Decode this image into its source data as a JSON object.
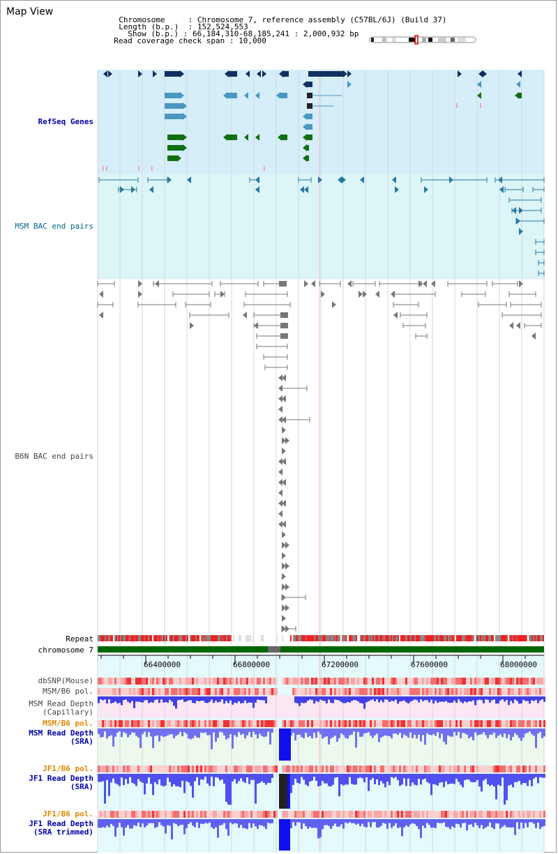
{
  "title": "Map View",
  "header": {
    "chromosome_label": "Chromosome",
    "chromosome_value": "Chromosome 7, reference assembly (C57BL/6J) (Build 37)",
    "length_label": "Length (b.p.)",
    "length_value": "152,524,553",
    "show_label": "Show (b.p.)",
    "show_value": "66,184,310-68,185,241 : 2,000,932 bp",
    "span_label": "Read coverage check span",
    "span_value": "10,000"
  },
  "tracks": {
    "refseq": "RefSeq Genes",
    "msm_bac": "MSM BAC end pairs",
    "b6n_bac": "B6N BAC end pairs",
    "repeat": "Repeat",
    "chromosome": "chromosome 7",
    "dbsnp": "dbSNP(Mouse)",
    "msm_b6_pol_1": "MSM/B6 pol.",
    "msm_read_depth_cap_1": "MSM Read Depth",
    "msm_read_depth_cap_2": "(Capillary)",
    "msm_b6_pol_2": "MSM/B6 pol.",
    "msm_read_depth_sra_1": "MSM Read Depth",
    "msm_read_depth_sra_2": "(SRA)",
    "jf1_b6_pol_1": "JF1/B6 pol.",
    "jf1_read_depth_1": "JF1 Read Depth",
    "jf1_read_depth_2": "(SRA)",
    "jf1_b6_pol_2": "JF1/B6 pol.",
    "jf1_read_depth_trim_1": "JF1 Read Depth",
    "jf1_read_depth_trim_2": "(SRA trimmed)"
  },
  "axis_ticks": [
    "66400000",
    "66800000",
    "67200000",
    "67600000",
    "68000000"
  ],
  "colors": {
    "refseq_bg": "#d8eef8",
    "msm_bg": "#ddf6f8",
    "navy": "#103060",
    "steel": "#4898c0",
    "green": "#107010",
    "chrom_green": "#006600",
    "repeat_red": "#ee2222",
    "depth_blue": "#3333ee"
  }
}
